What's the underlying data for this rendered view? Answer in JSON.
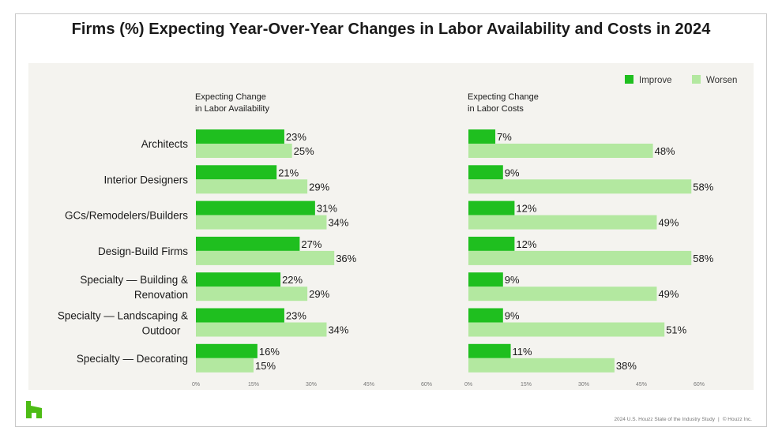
{
  "title": "Firms (%) Expecting Year-Over-Year Changes in Labor Availability and Costs in 2024",
  "footer": {
    "left": "2024 U.S. Houzz State of the Industry Study",
    "separator": "|",
    "right": "© Houzz Inc."
  },
  "logo": {
    "icon": "houzz-logo-icon",
    "color": "#4dbc15"
  },
  "legend": [
    {
      "name": "Improve",
      "color": "#1fbf1f"
    },
    {
      "name": "Worsen",
      "color": "#b3e8a0"
    }
  ],
  "chart_data": {
    "type": "bar",
    "orientation": "horizontal",
    "categories": [
      [
        "Architects"
      ],
      [
        "Interior Designers"
      ],
      [
        "GCs/Remodelers/Builders"
      ],
      [
        "Design-Build Firms"
      ],
      [
        "Specialty — Building &",
        "Renovation"
      ],
      [
        "Specialty — Landscaping &",
        "Outdoor"
      ],
      [
        "Specialty — Decorating"
      ]
    ],
    "xlim": [
      0,
      60
    ],
    "ticks": [
      "0%",
      "15%",
      "30%",
      "45%",
      "60%"
    ],
    "legend_position": "top-right",
    "grid": false,
    "panels": [
      {
        "subtitle": [
          "Expecting Change",
          "in Labor Availability"
        ],
        "series": [
          {
            "name": "Improve",
            "values": [
              23,
              21,
              31,
              27,
              22,
              23,
              16
            ]
          },
          {
            "name": "Worsen",
            "values": [
              25,
              29,
              34,
              36,
              29,
              34,
              15
            ]
          }
        ]
      },
      {
        "subtitle": [
          "Expecting Change",
          "in Labor Costs"
        ],
        "series": [
          {
            "name": "Improve",
            "values": [
              7,
              9,
              12,
              12,
              9,
              9,
              11
            ]
          },
          {
            "name": "Worsen",
            "values": [
              48,
              58,
              49,
              58,
              49,
              51,
              38
            ]
          }
        ]
      }
    ]
  }
}
